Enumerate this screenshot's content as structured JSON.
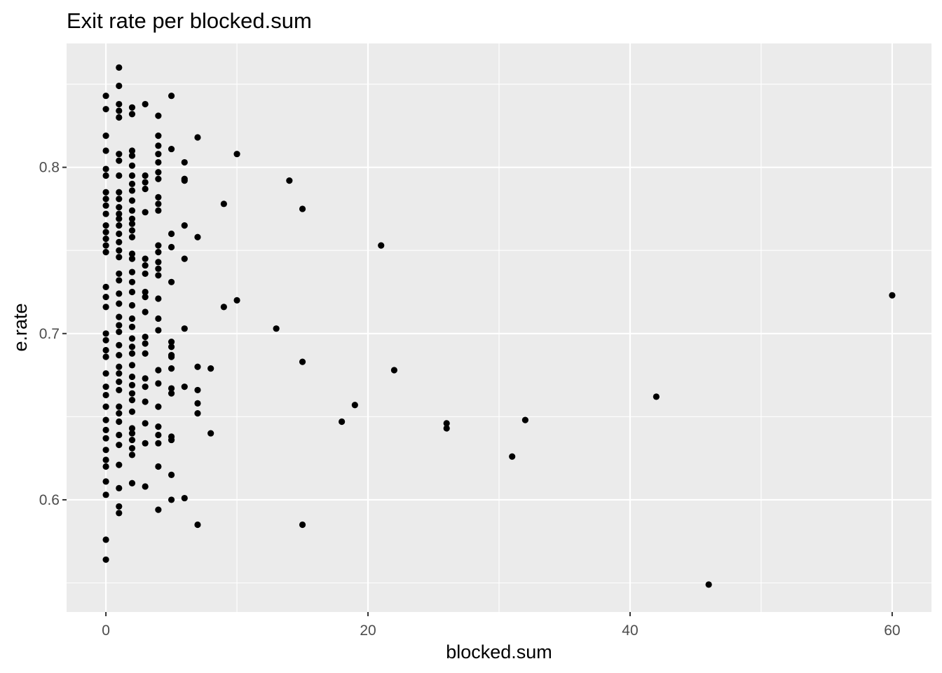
{
  "chart_data": {
    "type": "scatter",
    "title": "Exit rate per blocked.sum",
    "xlabel": "blocked.sum",
    "ylabel": "e.rate",
    "xlim": [
      -3,
      63
    ],
    "ylim": [
      0.5325,
      0.8745
    ],
    "x_ticks": [
      0,
      20,
      40,
      60
    ],
    "x_tick_labels": [
      "0",
      "20",
      "40",
      "60"
    ],
    "y_ticks": [
      0.6,
      0.7,
      0.8
    ],
    "y_tick_labels": [
      "0.6",
      "0.7",
      "0.8"
    ],
    "grid": true,
    "legend": "none",
    "colors": {
      "panel": "#ebebeb",
      "grid": "#ffffff",
      "point": "#000000",
      "tick": "#4d4d4d"
    },
    "points": [
      [
        0,
        0.843
      ],
      [
        0,
        0.835
      ],
      [
        0,
        0.819
      ],
      [
        0,
        0.81
      ],
      [
        0,
        0.799
      ],
      [
        0,
        0.795
      ],
      [
        0,
        0.785
      ],
      [
        0,
        0.781
      ],
      [
        0,
        0.777
      ],
      [
        0,
        0.772
      ],
      [
        0,
        0.765
      ],
      [
        0,
        0.761
      ],
      [
        0,
        0.757
      ],
      [
        0,
        0.753
      ],
      [
        0,
        0.749
      ],
      [
        0,
        0.728
      ],
      [
        0,
        0.722
      ],
      [
        0,
        0.716
      ],
      [
        0,
        0.7
      ],
      [
        0,
        0.696
      ],
      [
        0,
        0.69
      ],
      [
        0,
        0.686
      ],
      [
        0,
        0.676
      ],
      [
        0,
        0.668
      ],
      [
        0,
        0.663
      ],
      [
        0,
        0.656
      ],
      [
        0,
        0.648
      ],
      [
        0,
        0.642
      ],
      [
        0,
        0.637
      ],
      [
        0,
        0.63
      ],
      [
        0,
        0.624
      ],
      [
        0,
        0.62
      ],
      [
        0,
        0.611
      ],
      [
        0,
        0.603
      ],
      [
        0,
        0.576
      ],
      [
        0,
        0.564
      ],
      [
        1,
        0.86
      ],
      [
        1,
        0.849
      ],
      [
        1,
        0.838
      ],
      [
        1,
        0.834
      ],
      [
        1,
        0.83
      ],
      [
        1,
        0.808
      ],
      [
        1,
        0.804
      ],
      [
        1,
        0.795
      ],
      [
        1,
        0.785
      ],
      [
        1,
        0.781
      ],
      [
        1,
        0.776
      ],
      [
        1,
        0.772
      ],
      [
        1,
        0.769
      ],
      [
        1,
        0.765
      ],
      [
        1,
        0.76
      ],
      [
        1,
        0.755
      ],
      [
        1,
        0.75
      ],
      [
        1,
        0.746
      ],
      [
        1,
        0.736
      ],
      [
        1,
        0.732
      ],
      [
        1,
        0.724
      ],
      [
        1,
        0.718
      ],
      [
        1,
        0.71
      ],
      [
        1,
        0.705
      ],
      [
        1,
        0.701
      ],
      [
        1,
        0.693
      ],
      [
        1,
        0.687
      ],
      [
        1,
        0.68
      ],
      [
        1,
        0.676
      ],
      [
        1,
        0.671
      ],
      [
        1,
        0.666
      ],
      [
        1,
        0.656
      ],
      [
        1,
        0.652
      ],
      [
        1,
        0.647
      ],
      [
        1,
        0.639
      ],
      [
        1,
        0.633
      ],
      [
        1,
        0.621
      ],
      [
        1,
        0.607
      ],
      [
        1,
        0.596
      ],
      [
        1,
        0.592
      ],
      [
        2,
        0.836
      ],
      [
        2,
        0.832
      ],
      [
        2,
        0.81
      ],
      [
        2,
        0.807
      ],
      [
        2,
        0.801
      ],
      [
        2,
        0.795
      ],
      [
        2,
        0.79
      ],
      [
        2,
        0.786
      ],
      [
        2,
        0.78
      ],
      [
        2,
        0.774
      ],
      [
        2,
        0.769
      ],
      [
        2,
        0.766
      ],
      [
        2,
        0.762
      ],
      [
        2,
        0.758
      ],
      [
        2,
        0.748
      ],
      [
        2,
        0.745
      ],
      [
        2,
        0.737
      ],
      [
        2,
        0.731
      ],
      [
        2,
        0.725
      ],
      [
        2,
        0.717
      ],
      [
        2,
        0.709
      ],
      [
        2,
        0.704
      ],
      [
        2,
        0.697
      ],
      [
        2,
        0.692
      ],
      [
        2,
        0.688
      ],
      [
        2,
        0.681
      ],
      [
        2,
        0.674
      ],
      [
        2,
        0.669
      ],
      [
        2,
        0.664
      ],
      [
        2,
        0.66
      ],
      [
        2,
        0.653
      ],
      [
        2,
        0.643
      ],
      [
        2,
        0.64
      ],
      [
        2,
        0.636
      ],
      [
        2,
        0.631
      ],
      [
        2,
        0.627
      ],
      [
        2,
        0.61
      ],
      [
        3,
        0.838
      ],
      [
        3,
        0.795
      ],
      [
        3,
        0.791
      ],
      [
        3,
        0.787
      ],
      [
        3,
        0.773
      ],
      [
        3,
        0.745
      ],
      [
        3,
        0.741
      ],
      [
        3,
        0.736
      ],
      [
        3,
        0.725
      ],
      [
        3,
        0.722
      ],
      [
        3,
        0.713
      ],
      [
        3,
        0.698
      ],
      [
        3,
        0.694
      ],
      [
        3,
        0.688
      ],
      [
        3,
        0.673
      ],
      [
        3,
        0.668
      ],
      [
        3,
        0.659
      ],
      [
        3,
        0.646
      ],
      [
        3,
        0.634
      ],
      [
        3,
        0.608
      ],
      [
        4,
        0.831
      ],
      [
        4,
        0.819
      ],
      [
        4,
        0.813
      ],
      [
        4,
        0.808
      ],
      [
        4,
        0.803
      ],
      [
        4,
        0.797
      ],
      [
        4,
        0.793
      ],
      [
        4,
        0.782
      ],
      [
        4,
        0.778
      ],
      [
        4,
        0.774
      ],
      [
        4,
        0.753
      ],
      [
        4,
        0.749
      ],
      [
        4,
        0.743
      ],
      [
        4,
        0.739
      ],
      [
        4,
        0.735
      ],
      [
        4,
        0.721
      ],
      [
        4,
        0.709
      ],
      [
        4,
        0.702
      ],
      [
        4,
        0.678
      ],
      [
        4,
        0.67
      ],
      [
        4,
        0.656
      ],
      [
        4,
        0.644
      ],
      [
        4,
        0.639
      ],
      [
        4,
        0.634
      ],
      [
        4,
        0.62
      ],
      [
        4,
        0.594
      ],
      [
        5,
        0.843
      ],
      [
        5,
        0.811
      ],
      [
        5,
        0.76
      ],
      [
        5,
        0.752
      ],
      [
        5,
        0.731
      ],
      [
        5,
        0.695
      ],
      [
        5,
        0.692
      ],
      [
        5,
        0.687
      ],
      [
        5,
        0.686
      ],
      [
        5,
        0.679
      ],
      [
        5,
        0.667
      ],
      [
        5,
        0.664
      ],
      [
        5,
        0.638
      ],
      [
        5,
        0.636
      ],
      [
        5,
        0.615
      ],
      [
        5,
        0.6
      ],
      [
        6,
        0.803
      ],
      [
        6,
        0.793
      ],
      [
        6,
        0.792
      ],
      [
        6,
        0.765
      ],
      [
        6,
        0.745
      ],
      [
        6,
        0.703
      ],
      [
        6,
        0.668
      ],
      [
        6,
        0.601
      ],
      [
        7,
        0.818
      ],
      [
        7,
        0.758
      ],
      [
        7,
        0.68
      ],
      [
        7,
        0.666
      ],
      [
        7,
        0.658
      ],
      [
        7,
        0.652
      ],
      [
        7,
        0.585
      ],
      [
        8,
        0.679
      ],
      [
        8,
        0.64
      ],
      [
        9,
        0.778
      ],
      [
        9,
        0.716
      ],
      [
        10,
        0.808
      ],
      [
        10,
        0.72
      ],
      [
        13,
        0.703
      ],
      [
        14,
        0.792
      ],
      [
        15,
        0.775
      ],
      [
        15,
        0.683
      ],
      [
        15,
        0.585
      ],
      [
        18,
        0.647
      ],
      [
        19,
        0.657
      ],
      [
        21,
        0.753
      ],
      [
        22,
        0.678
      ],
      [
        26,
        0.646
      ],
      [
        26,
        0.643
      ],
      [
        31,
        0.626
      ],
      [
        32,
        0.648
      ],
      [
        42,
        0.662
      ],
      [
        46,
        0.549
      ],
      [
        60,
        0.723
      ]
    ]
  }
}
